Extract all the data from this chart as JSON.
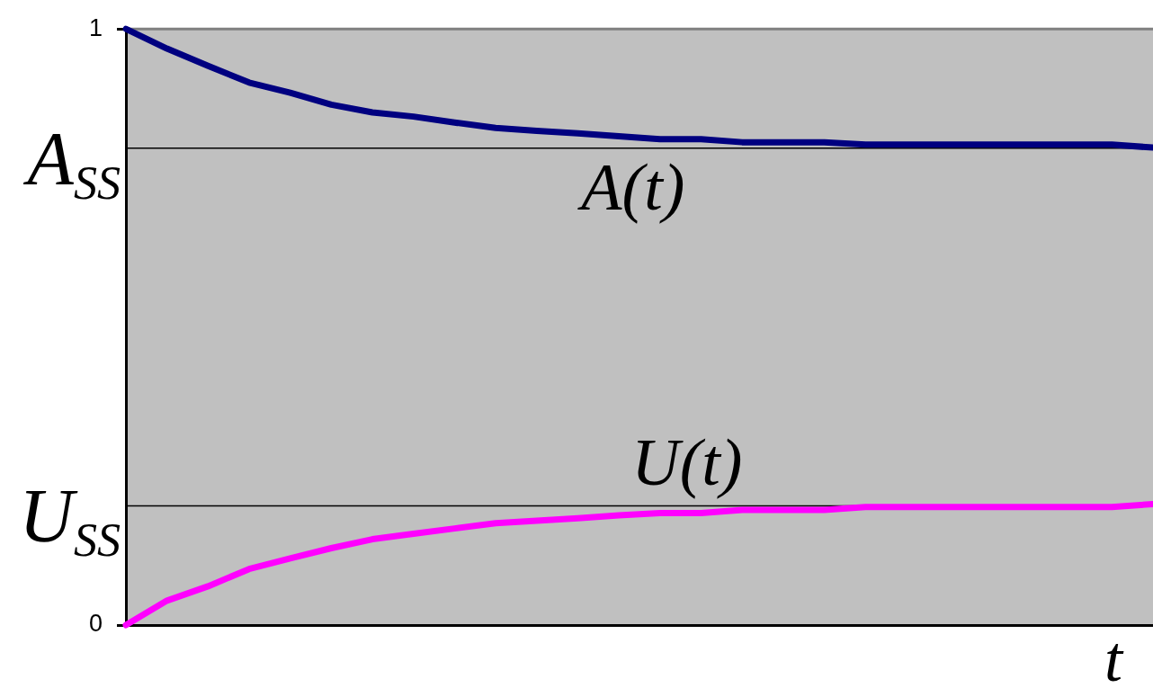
{
  "chart_data": {
    "type": "line",
    "xlabel": "t",
    "categories": [
      null,
      null,
      null,
      null,
      null,
      null,
      null,
      null,
      null,
      null,
      null,
      null,
      null,
      null,
      null,
      null,
      null,
      null,
      null,
      null,
      null,
      null,
      null,
      null,
      null,
      null
    ],
    "series": [
      {
        "name": "A(t)",
        "color": "#000080",
        "values": [
          1.0,
          0.967,
          0.938,
          0.91,
          0.893,
          0.873,
          0.86,
          0.853,
          0.843,
          0.834,
          0.829,
          0.825,
          0.82,
          0.815,
          0.815,
          0.81,
          0.81,
          0.81,
          0.806,
          0.806,
          0.806,
          0.806,
          0.806,
          0.806,
          0.806,
          0.801
        ]
      },
      {
        "name": "U(t)",
        "color": "#ff00ff",
        "values": [
          0.0,
          0.041,
          0.065,
          0.094,
          0.112,
          0.129,
          0.144,
          0.153,
          0.162,
          0.171,
          0.175,
          0.179,
          0.184,
          0.188,
          0.188,
          0.193,
          0.193,
          0.193,
          0.198,
          0.198,
          0.198,
          0.198,
          0.198,
          0.198,
          0.198,
          0.203
        ]
      }
    ],
    "ylim": [
      0,
      1
    ],
    "yticks": [
      0,
      1
    ],
    "ref_lines": [
      {
        "axis": "y",
        "value": 0.8,
        "label": "A$_{SS}$",
        "color": "#000000"
      },
      {
        "axis": "y",
        "value": 0.2,
        "label": "U$_{SS}$",
        "color": "#000000"
      }
    ],
    "tick_labels": "y",
    "grid": false,
    "legend": false,
    "marker": "none"
  }
}
